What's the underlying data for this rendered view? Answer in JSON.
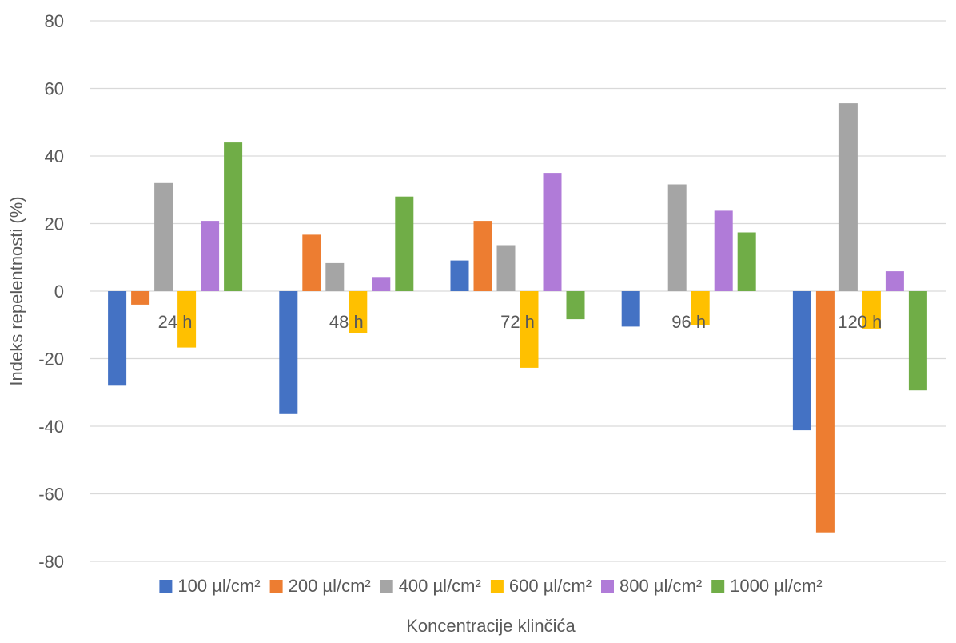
{
  "chart_data": {
    "type": "bar",
    "title": "",
    "categories": [
      "24 h",
      "48 h",
      "72 h",
      "96 h",
      "120 h"
    ],
    "series": [
      {
        "name": "100 µl/cm²",
        "color": "#4472C4",
        "values": [
          -28,
          -36.4,
          9.1,
          -10.5,
          -41.2
        ]
      },
      {
        "name": "200 µl/cm²",
        "color": "#ED7D31",
        "values": [
          -4,
          16.7,
          20.8,
          0,
          -71.4
        ]
      },
      {
        "name": "400 µl/cm²",
        "color": "#A5A5A5",
        "values": [
          32,
          8.3,
          13.6,
          31.6,
          55.6
        ]
      },
      {
        "name": "600 µl/cm²",
        "color": "#FFC000",
        "values": [
          -16.7,
          -12.5,
          -22.7,
          -10,
          -11.1
        ]
      },
      {
        "name": "800 µl/cm²",
        "color": "#B07BD8",
        "values": [
          20.8,
          4.2,
          35,
          23.8,
          5.9
        ]
      },
      {
        "name": "1000 µl/cm²",
        "color": "#70AD47",
        "values": [
          44,
          28,
          -8.3,
          17.4,
          -29.4
        ]
      }
    ],
    "xlabel": "Koncentracije klinčića",
    "ylabel": "Indeks repelentnosti (%)",
    "ylim": [
      -80,
      80
    ],
    "yticks": [
      "80",
      "60",
      "40",
      "20",
      "0",
      "-20",
      "-40",
      "-60",
      "-80"
    ],
    "grid": true,
    "legend": "bottom"
  }
}
